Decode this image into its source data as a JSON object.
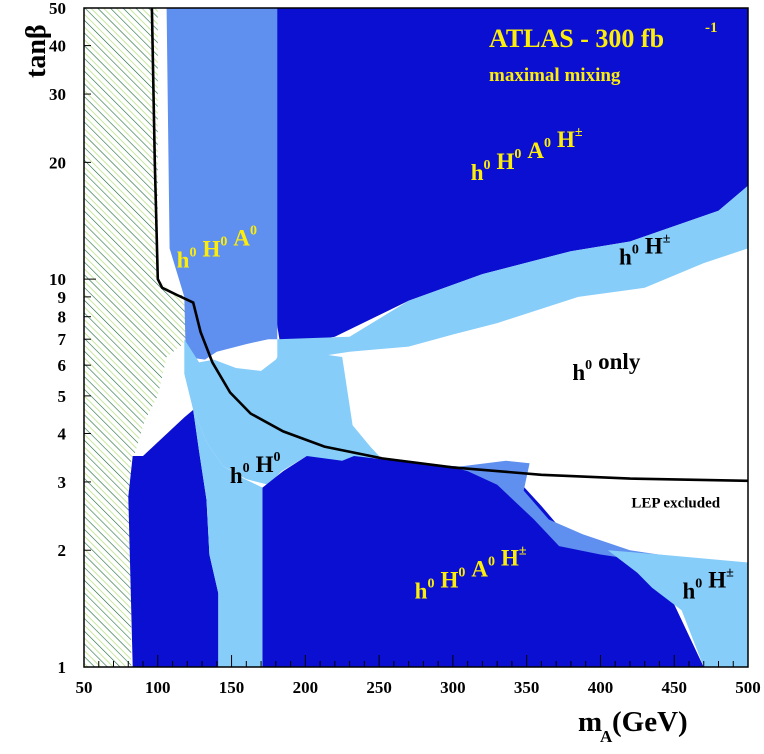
{
  "chart_data": {
    "type": "area",
    "title": "ATLAS - 300 fb",
    "title_superscript": "-1",
    "subtitle": "maximal mixing",
    "xlabel": {
      "main": "m",
      "sub": "A",
      "unit": " (GeV)"
    },
    "ylabel": "tanβ",
    "xlim": [
      50,
      500
    ],
    "ylim": [
      1,
      50
    ],
    "yscale": "log",
    "x_ticks": [
      50,
      100,
      150,
      200,
      250,
      300,
      350,
      400,
      450,
      500
    ],
    "y_ticks": [
      1,
      2,
      3,
      4,
      5,
      6,
      7,
      8,
      9,
      10,
      20,
      30,
      40,
      50
    ],
    "colors": {
      "dark": "#0b0fd2",
      "medium": "#5f8fef",
      "light": "#86cdf9",
      "label": "#fcee0a",
      "hatch": "#1e6b3a",
      "hatch_light": "#c8e6a0",
      "curve": "#000000"
    },
    "region_labels": [
      {
        "id": "upper-four",
        "base": [
          "h",
          "H",
          "A",
          "H"
        ],
        "sups": [
          "0",
          "0",
          "0",
          "±"
        ],
        "x": 350,
        "y": 18,
        "color": "label"
      },
      {
        "id": "upper-three",
        "base": [
          "h",
          "H",
          "A"
        ],
        "sups": [
          "0",
          "0",
          "0"
        ],
        "x": 140,
        "y": 10.7,
        "color": "label"
      },
      {
        "id": "right-two",
        "base": [
          "h",
          "H"
        ],
        "sups": [
          "0",
          "±"
        ],
        "x": 430,
        "y": 10.9,
        "color": "black"
      },
      {
        "id": "only",
        "base": [
          "h",
          "only"
        ],
        "sups": [
          "0",
          ""
        ],
        "x": 404,
        "y": 5.5,
        "color": "black"
      },
      {
        "id": "mid-two",
        "base": [
          "h",
          "H"
        ],
        "sups": [
          "0",
          "0"
        ],
        "x": 166,
        "y": 2.98,
        "color": "black"
      },
      {
        "id": "lower-four",
        "base": [
          "h",
          "H",
          "A",
          "H"
        ],
        "sups": [
          "0",
          "0",
          "0",
          "±"
        ],
        "x": 312,
        "y": 1.5,
        "color": "label"
      },
      {
        "id": "lower-right-two",
        "base": [
          "h",
          "H"
        ],
        "sups": [
          "0",
          "±"
        ],
        "x": 473,
        "y": 1.5,
        "color": "black"
      }
    ],
    "annotation": {
      "text": "LEP excluded",
      "x": 451,
      "y": 2.58
    },
    "lep_curve": {
      "name": "LEP excluded",
      "points": [
        [
          96,
          50
        ],
        [
          98,
          20
        ],
        [
          100,
          10
        ],
        [
          103,
          9.5
        ],
        [
          113,
          9.1
        ],
        [
          124,
          8.7
        ],
        [
          129,
          7.3
        ],
        [
          137,
          6.1
        ],
        [
          149,
          5.1
        ],
        [
          163,
          4.5
        ],
        [
          185,
          4.05
        ],
        [
          213,
          3.7
        ],
        [
          252,
          3.45
        ],
        [
          300,
          3.27
        ],
        [
          360,
          3.13
        ],
        [
          420,
          3.06
        ],
        [
          500,
          3.02
        ]
      ]
    },
    "regions": [
      {
        "name": "dark-upper",
        "fill": "dark",
        "points": [
          [
            97,
            50
          ],
          [
            500,
            50
          ],
          [
            500,
            17.4
          ],
          [
            480,
            15
          ],
          [
            420,
            12.5
          ],
          [
            380,
            11.8
          ],
          [
            320,
            10.3
          ],
          [
            270,
            8.8
          ],
          [
            220,
            7.1
          ],
          [
            192,
            6.8
          ],
          [
            183,
            6.8
          ],
          [
            180,
            8
          ],
          [
            178,
            50
          ]
        ]
      },
      {
        "name": "medium-upper",
        "fill": "medium",
        "points": [
          [
            100,
            50
          ],
          [
            106,
            50
          ],
          [
            108,
            12
          ],
          [
            118,
            9
          ],
          [
            119,
            6.3
          ],
          [
            132,
            6.2
          ],
          [
            140,
            6.5
          ],
          [
            160,
            6.8
          ],
          [
            175,
            7
          ],
          [
            181,
            7
          ],
          [
            181,
            50
          ],
          [
            97,
            50
          ]
        ]
      },
      {
        "name": "light-upper-band",
        "fill": "light",
        "points": [
          [
            181,
            7
          ],
          [
            230,
            7.1
          ],
          [
            270,
            8.8
          ],
          [
            320,
            10.3
          ],
          [
            380,
            11.8
          ],
          [
            420,
            12.5
          ],
          [
            480,
            15
          ],
          [
            500,
            17.4
          ],
          [
            500,
            12
          ],
          [
            470,
            11
          ],
          [
            430,
            9.5
          ],
          [
            385,
            9
          ],
          [
            330,
            7.7
          ],
          [
            300,
            7.2
          ],
          [
            270,
            6.7
          ],
          [
            230,
            6.5
          ],
          [
            195,
            6.2
          ],
          [
            181,
            6.1
          ]
        ]
      },
      {
        "name": "light-center",
        "fill": "light",
        "points": [
          [
            118,
            7
          ],
          [
            128,
            6.1
          ],
          [
            138,
            6.2
          ],
          [
            153,
            5.9
          ],
          [
            170,
            5.8
          ],
          [
            180,
            6.2
          ],
          [
            188,
            6.9
          ],
          [
            200,
            6.5
          ],
          [
            225,
            6.3
          ],
          [
            232,
            4.2
          ],
          [
            244,
            3.7
          ],
          [
            250,
            3.5
          ],
          [
            235,
            3.3
          ],
          [
            225,
            3.2
          ],
          [
            201,
            3.5
          ],
          [
            184,
            3.2
          ],
          [
            175,
            2.95
          ],
          [
            160,
            3.05
          ],
          [
            144,
            3.3
          ],
          [
            133,
            3.8
          ],
          [
            124,
            4.6
          ],
          [
            118,
            5.7
          ]
        ]
      },
      {
        "name": "dark-lower-left",
        "fill": "dark",
        "points": [
          [
            83,
            3.5
          ],
          [
            90,
            3.5
          ],
          [
            118,
            4.4
          ],
          [
            124,
            4.6
          ],
          [
            128,
            3.6
          ],
          [
            133,
            2.7
          ],
          [
            135,
            1.95
          ],
          [
            141,
            1.55
          ],
          [
            141,
            1
          ],
          [
            95,
            1
          ],
          [
            83,
            1
          ],
          [
            80,
            2.75
          ]
        ]
      },
      {
        "name": "light-lower-strip",
        "fill": "light",
        "points": [
          [
            124,
            4.6
          ],
          [
            133,
            3.8
          ],
          [
            144,
            3.3
          ],
          [
            159,
            3.05
          ],
          [
            171,
            2.9
          ],
          [
            171,
            1
          ],
          [
            141,
            1
          ],
          [
            141,
            1.55
          ],
          [
            135,
            1.95
          ],
          [
            133,
            2.7
          ],
          [
            128,
            3.6
          ]
        ]
      },
      {
        "name": "dark-lower",
        "fill": "dark",
        "points": [
          [
            171,
            2.9
          ],
          [
            185,
            3.2
          ],
          [
            201,
            3.5
          ],
          [
            225,
            3.4
          ],
          [
            233,
            3.5
          ],
          [
            275,
            3.35
          ],
          [
            320,
            3.25
          ],
          [
            336,
            3.1
          ],
          [
            345,
            3.0
          ],
          [
            360,
            2.6
          ],
          [
            372,
            2.3
          ],
          [
            396,
            2.05
          ],
          [
            420,
            1.95
          ],
          [
            450,
            1.87
          ],
          [
            472,
            1.84
          ],
          [
            450,
            1.45
          ],
          [
            470,
            1
          ],
          [
            171,
            1
          ]
        ]
      },
      {
        "name": "medium-lower",
        "fill": "medium",
        "points": [
          [
            300,
            3.27
          ],
          [
            336,
            3.4
          ],
          [
            352,
            3.35
          ],
          [
            348,
            2.85
          ],
          [
            365,
            2.4
          ],
          [
            388,
            2.2
          ],
          [
            420,
            2.0
          ],
          [
            500,
            1.8
          ],
          [
            500,
            1.7
          ],
          [
            465,
            1.78
          ],
          [
            440,
            1.85
          ],
          [
            400,
            1.95
          ],
          [
            372,
            2.05
          ],
          [
            355,
            2.4
          ],
          [
            330,
            2.95
          ],
          [
            310,
            3.2
          ]
        ]
      },
      {
        "name": "light-lower-right",
        "fill": "light",
        "points": [
          [
            405,
            2.0
          ],
          [
            440,
            1.95
          ],
          [
            500,
            1.86
          ],
          [
            500,
            1
          ],
          [
            470,
            1
          ],
          [
            455,
            1.4
          ],
          [
            435,
            1.6
          ],
          [
            425,
            1.75
          ]
        ]
      }
    ],
    "excluded_hatch": {
      "x_from": 50,
      "x_to": 82,
      "bulge": [
        [
          82,
          3.5
        ],
        [
          83,
          3.4
        ],
        [
          91,
          4.3
        ],
        [
          100,
          5
        ],
        [
          106,
          6.3
        ],
        [
          117,
          6.8
        ],
        [
          126,
          8.3
        ],
        [
          126,
          9.1
        ],
        [
          113,
          9.1
        ],
        [
          106,
          9.5
        ],
        [
          100,
          10
        ]
      ]
    }
  }
}
